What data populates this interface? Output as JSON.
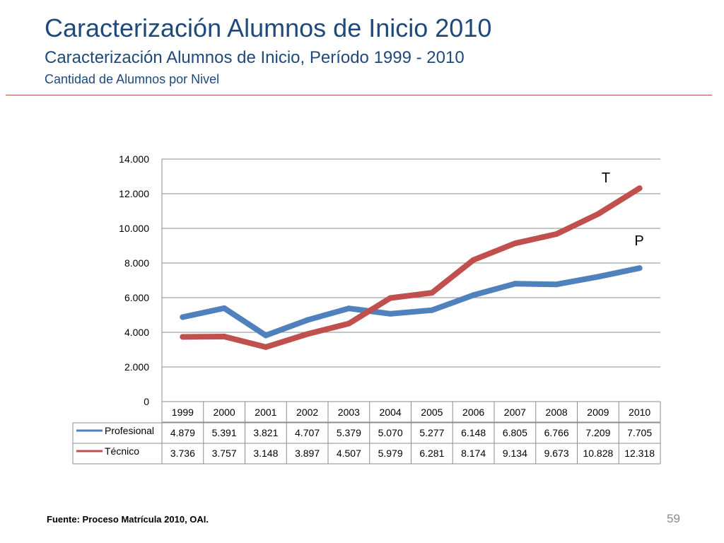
{
  "slide": {
    "title": "Caracterización Alumnos de Inicio 2010",
    "subtitle": "Caracterización Alumnos de Inicio, Período 1999 - 2010",
    "subtitle2": "Cantidad de Alumnos por Nivel",
    "source": "Fuente: Proceso Matrícula 2010, OAI.",
    "page_number": "59"
  },
  "chart_data": {
    "type": "line",
    "x": [
      "1999",
      "2000",
      "2001",
      "2002",
      "2003",
      "2004",
      "2005",
      "2006",
      "2007",
      "2008",
      "2009",
      "2010"
    ],
    "series": [
      {
        "name": "Profesional",
        "color": "#4f81bd",
        "end_label": "P",
        "values": [
          4879,
          5391,
          3821,
          4707,
          5379,
          5070,
          5277,
          6148,
          6805,
          6766,
          7209,
          7705
        ],
        "value_labels": [
          "4.879",
          "5.391",
          "3.821",
          "4.707",
          "5.379",
          "5.070",
          "5.277",
          "6.148",
          "6.805",
          "6.766",
          "7.209",
          "7.705"
        ]
      },
      {
        "name": "Técnico",
        "color": "#c0504d",
        "end_label": "T",
        "values": [
          3736,
          3757,
          3148,
          3897,
          4507,
          5979,
          6281,
          8174,
          9134,
          9673,
          10828,
          12318
        ],
        "value_labels": [
          "3.736",
          "3.757",
          "3.148",
          "3.897",
          "4.507",
          "5.979",
          "6.281",
          "8.174",
          "9.134",
          "9.673",
          "10.828",
          "12.318"
        ]
      }
    ],
    "yticks": [
      "0",
      "2.000",
      "4.000",
      "6.000",
      "8.000",
      "10.000",
      "12.000",
      "14.000"
    ],
    "ylim": [
      0,
      14000
    ],
    "grid": true,
    "legend": "data-table"
  }
}
